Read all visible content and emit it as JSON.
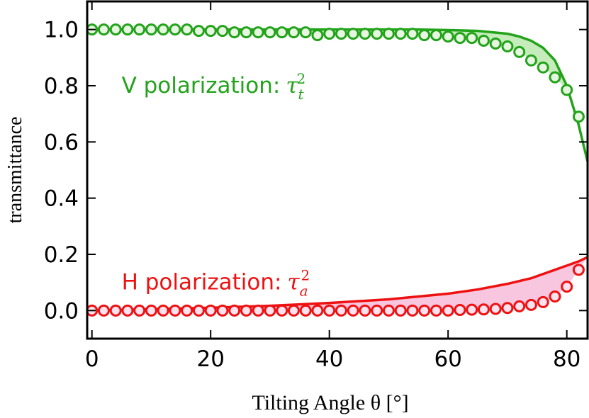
{
  "chart_data": {
    "type": "line",
    "xlabel": "Tilting Angle θ [°]",
    "ylabel": "transmittance",
    "xlim": [
      -0.8,
      83.5
    ],
    "ylim": [
      -0.1,
      1.1
    ],
    "xticks": [
      0,
      20,
      40,
      60,
      80
    ],
    "yticks": [
      {
        "value": 0,
        "label": "0.0"
      },
      0.2,
      0.4,
      0.6,
      0.8,
      {
        "value": 1,
        "label": "1.0"
      }
    ],
    "grid": false,
    "annotations": [
      {
        "text": "V polarization:",
        "symbol": "τ",
        "subscript": "t",
        "superscript": "2",
        "x": 5,
        "y": 0.8,
        "color": "#22a31a"
      },
      {
        "text": "H polarization:",
        "symbol": "τ",
        "subscript": "a",
        "superscript": "2",
        "x": 5,
        "y": 0.1,
        "color": "#ee1111"
      }
    ],
    "series": [
      {
        "kind": "curve",
        "color": "#22a31a",
        "fill_color": "#c6ecbc",
        "x": [
          0,
          10,
          20,
          30,
          40,
          50,
          55,
          60,
          65,
          70,
          72,
          74,
          76,
          78,
          80,
          82,
          83.5
        ],
        "values": [
          1,
          1,
          1,
          1,
          1,
          1,
          1,
          0.998,
          0.995,
          0.985,
          0.975,
          0.96,
          0.935,
          0.89,
          0.8,
          0.66,
          0.53
        ]
      },
      {
        "kind": "points",
        "color": "#22a31a",
        "face_color": "#e6f6e0",
        "x": [
          0,
          2,
          4,
          6,
          8,
          10,
          12,
          14,
          16,
          18,
          20,
          22,
          24,
          26,
          28,
          30,
          32,
          34,
          36,
          38,
          40,
          42,
          44,
          46,
          48,
          50,
          52,
          54,
          56,
          58,
          60,
          62,
          64,
          66,
          68,
          70,
          72,
          74,
          76,
          78,
          80,
          82
        ],
        "values": [
          1,
          1,
          1,
          1,
          1,
          1,
          1,
          1,
          1,
          0.995,
          0.995,
          0.995,
          0.99,
          0.99,
          0.99,
          0.99,
          0.99,
          0.99,
          0.99,
          0.98,
          0.985,
          0.985,
          0.985,
          0.985,
          0.985,
          0.985,
          0.985,
          0.985,
          0.98,
          0.98,
          0.975,
          0.97,
          0.97,
          0.96,
          0.95,
          0.94,
          0.92,
          0.89,
          0.865,
          0.83,
          0.785,
          0.69
        ]
      },
      {
        "kind": "curve",
        "color": "#ee1111",
        "fill_color": "#f9c6df",
        "x": [
          0,
          10,
          20,
          30,
          40,
          50,
          55,
          60,
          65,
          70,
          72,
          74,
          76,
          78,
          80,
          82,
          83.5
        ],
        "values": [
          0,
          0.005,
          0.01,
          0.017,
          0.027,
          0.04,
          0.05,
          0.06,
          0.075,
          0.095,
          0.105,
          0.115,
          0.13,
          0.145,
          0.16,
          0.175,
          0.19
        ]
      },
      {
        "kind": "points",
        "color": "#ee1111",
        "face_color": "#fbe2ee",
        "x": [
          0,
          2,
          4,
          6,
          8,
          10,
          12,
          14,
          16,
          18,
          20,
          22,
          24,
          26,
          28,
          30,
          32,
          34,
          36,
          38,
          40,
          42,
          44,
          46,
          48,
          50,
          52,
          54,
          56,
          58,
          60,
          62,
          64,
          66,
          68,
          70,
          72,
          74,
          76,
          78,
          80,
          82
        ],
        "values": [
          0,
          0,
          0,
          0,
          0,
          0,
          0,
          0,
          0,
          0,
          0,
          0,
          0,
          0,
          0,
          0,
          0,
          0,
          0,
          0,
          0,
          0,
          0,
          0,
          0,
          0,
          0,
          0,
          0,
          0,
          0,
          0.002,
          0.003,
          0.004,
          0.006,
          0.009,
          0.015,
          0.02,
          0.03,
          0.05,
          0.085,
          0.145
        ]
      }
    ]
  }
}
